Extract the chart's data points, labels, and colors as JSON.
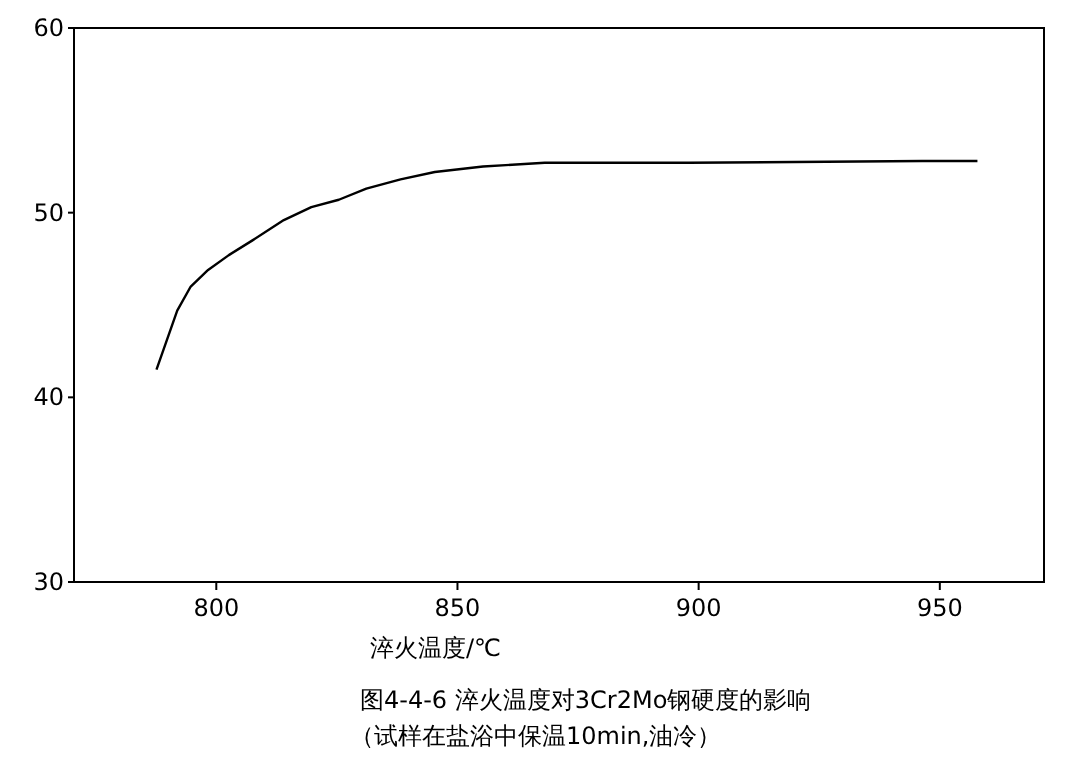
{
  "chart_data": {
    "type": "line",
    "title": "图4-4-6 淬火温度对3Cr2Mo钢硬度的影响",
    "subtitle": "（试样在盐浴中保温10min,油冷）",
    "xlabel": "淬火温度/℃",
    "x": [
      787.6,
      791.9,
      794.7,
      798.3,
      802.6,
      807.5,
      814.0,
      819.7,
      825.4,
      831.1,
      838.2,
      845.3,
      855.3,
      868.1,
      898,
      946.4,
      957.8
    ],
    "series": [
      {
        "color": "#000000",
        "values": [
          41.5,
          44.7,
          46.0,
          46.9,
          47.7,
          48.5,
          49.6,
          50.3,
          50.7,
          51.3,
          51.8,
          52.2,
          52.5,
          52.7,
          52.7,
          52.8,
          52.8
        ]
      }
    ],
    "xlim": [
      770.5,
      971.6
    ],
    "ylim": [
      30,
      60
    ],
    "xticks": [
      800,
      850,
      900,
      950
    ],
    "yticks": [
      30,
      40,
      50,
      60
    ],
    "grid": false,
    "marker": "none",
    "line_style": "solid"
  }
}
